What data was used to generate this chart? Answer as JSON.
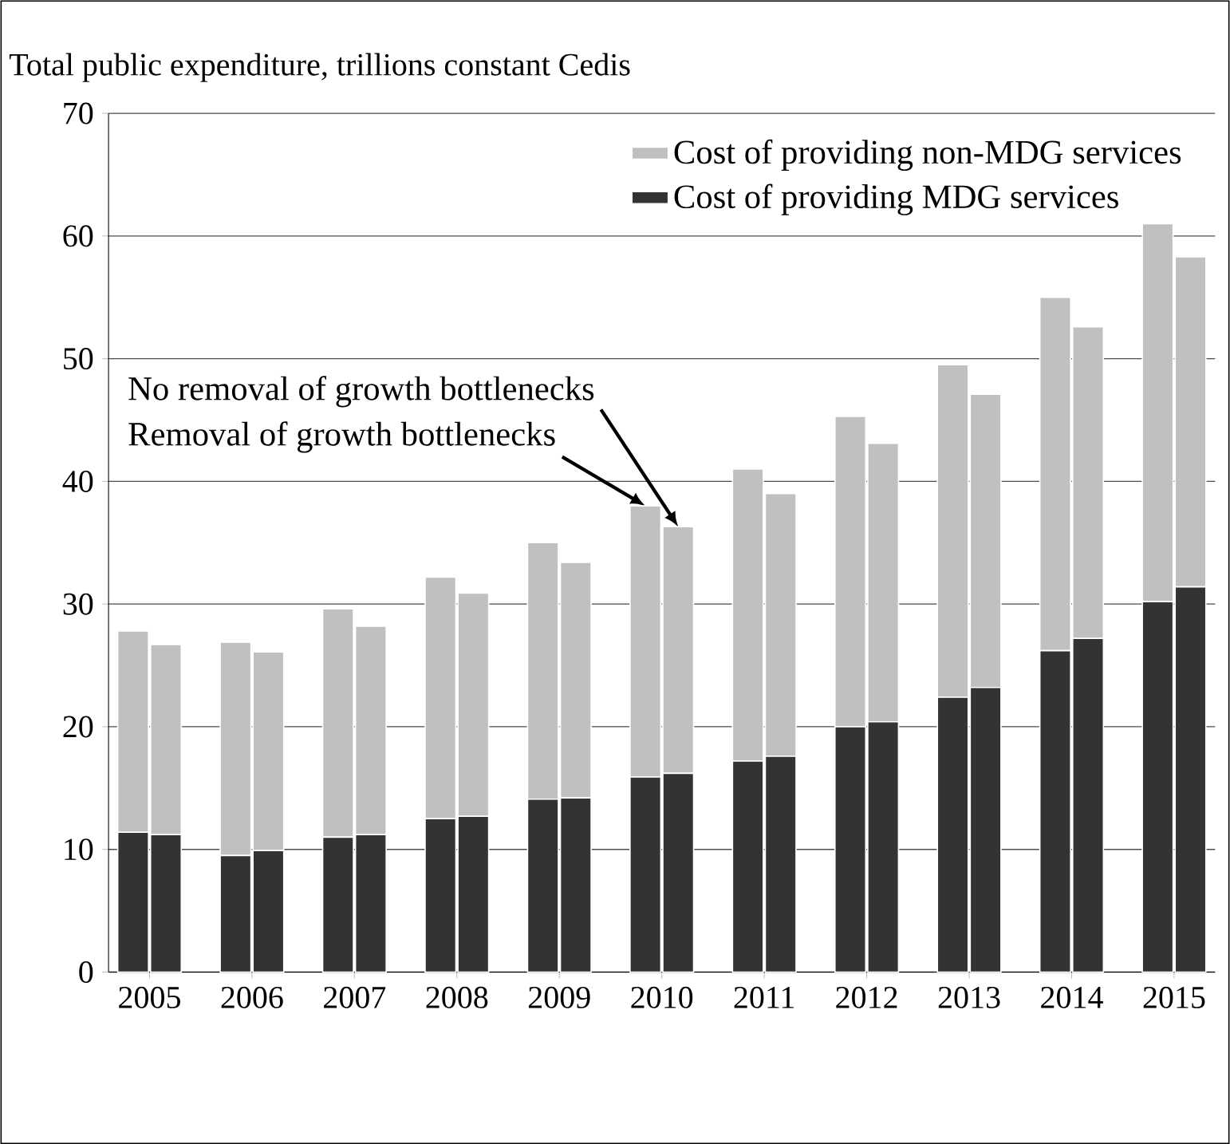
{
  "chart_data": {
    "type": "bar",
    "stacked": true,
    "title": "Total public expenditure, trillions constant Cedis",
    "x": [
      2004.84,
      2005.16,
      2005.84,
      2006.16,
      2006.84,
      2007.16,
      2007.84,
      2008.16,
      2008.84,
      2009.16,
      2009.84,
      2010.16,
      2010.84,
      2011.16,
      2011.84,
      2012.16,
      2012.84,
      2013.16,
      2013.84,
      2014.16,
      2014.84,
      2015.16
    ],
    "series": [
      {
        "name": "Cost of providing MDG services",
        "color": "#333333",
        "values": [
          11.4,
          11.2,
          9.5,
          9.9,
          11.0,
          11.2,
          12.5,
          12.7,
          14.1,
          14.2,
          15.9,
          16.2,
          17.2,
          17.6,
          20.0,
          20.4,
          22.4,
          23.2,
          26.2,
          27.2,
          30.2,
          31.4
        ]
      },
      {
        "name": "Cost of providing non-MDG services",
        "color": "#c0c0c0",
        "values": [
          16.4,
          15.5,
          17.4,
          16.2,
          18.6,
          17.0,
          19.7,
          18.2,
          20.9,
          19.2,
          22.1,
          20.1,
          23.8,
          21.4,
          25.3,
          22.7,
          27.1,
          23.9,
          28.8,
          25.4,
          30.8,
          26.9
        ]
      }
    ],
    "xlim": [
      2004.6,
      2015.4
    ],
    "xticks": [
      2005,
      2006,
      2007,
      2008,
      2009,
      2010,
      2011,
      2012,
      2013,
      2014,
      2015
    ],
    "ylim": [
      0,
      70
    ],
    "yticks": [
      0,
      10,
      20,
      30,
      40,
      50,
      60,
      70
    ],
    "grid": "y",
    "legend": "top right",
    "annotations": [
      {
        "text": "No removal of growth bottlenecks",
        "x": 2010.16,
        "y": 36.3
      },
      {
        "text": "Removal of growth bottlenecks",
        "x": 2009.84,
        "y": 38.0
      }
    ]
  }
}
